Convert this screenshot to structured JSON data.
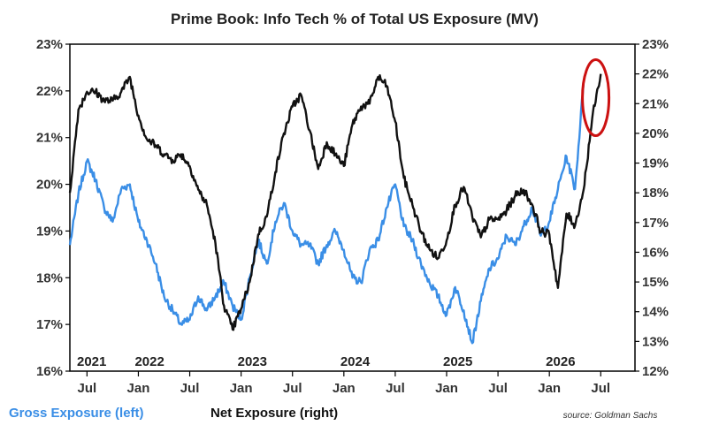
{
  "chart_data": {
    "type": "line",
    "title": "Prime Book: Info Tech % of Total US Exposure (MV)",
    "x_tick_labels": [
      "Jul",
      "Jan",
      "Jul",
      "Jan",
      "Jul",
      "Jan",
      "Jul",
      "Jan",
      "Jul",
      "Jan",
      "Jul"
    ],
    "year_labels": [
      "2021",
      "2022",
      "2023",
      "2024",
      "2025",
      "2026"
    ],
    "left_axis": {
      "ticks": [
        "16%",
        "17%",
        "18%",
        "19%",
        "20%",
        "21%",
        "22%",
        "23%"
      ],
      "ylim": [
        16,
        23
      ]
    },
    "right_axis": {
      "ticks": [
        "12%",
        "13%",
        "14%",
        "15%",
        "16%",
        "17%",
        "18%",
        "19%",
        "20%",
        "21%",
        "22%",
        "23%"
      ],
      "ylim": [
        12,
        23
      ]
    },
    "grid": false,
    "series": [
      {
        "name": "Gross Exposure (left)",
        "axis": "left",
        "color": "#3a8ee6",
        "points": [
          [
            "2021-05",
            18.7
          ],
          [
            "2021-06",
            19.8
          ],
          [
            "2021-07",
            20.5
          ],
          [
            "2021-08",
            20.1
          ],
          [
            "2021-09",
            19.5
          ],
          [
            "2021-10",
            19.2
          ],
          [
            "2021-11",
            19.9
          ],
          [
            "2021-12",
            20.0
          ],
          [
            "2022-01",
            19.2
          ],
          [
            "2022-02",
            18.8
          ],
          [
            "2022-03",
            18.3
          ],
          [
            "2022-04",
            17.6
          ],
          [
            "2022-05",
            17.3
          ],
          [
            "2022-06",
            17.0
          ],
          [
            "2022-07",
            17.1
          ],
          [
            "2022-08",
            17.6
          ],
          [
            "2022-09",
            17.3
          ],
          [
            "2022-10",
            17.6
          ],
          [
            "2022-11",
            17.9
          ],
          [
            "2022-12",
            17.4
          ],
          [
            "2023-01",
            17.1
          ],
          [
            "2023-02",
            18.0
          ],
          [
            "2023-03",
            18.8
          ],
          [
            "2023-04",
            18.3
          ],
          [
            "2023-05",
            19.2
          ],
          [
            "2023-06",
            19.6
          ],
          [
            "2023-07",
            19.0
          ],
          [
            "2023-08",
            18.7
          ],
          [
            "2023-09",
            18.7
          ],
          [
            "2023-10",
            18.3
          ],
          [
            "2023-11",
            18.7
          ],
          [
            "2023-12",
            19.0
          ],
          [
            "2024-01",
            18.6
          ],
          [
            "2024-02",
            18.0
          ],
          [
            "2024-03",
            17.9
          ],
          [
            "2024-04",
            18.6
          ],
          [
            "2024-05",
            18.8
          ],
          [
            "2024-06",
            19.5
          ],
          [
            "2024-07",
            20.0
          ],
          [
            "2024-08",
            19.1
          ],
          [
            "2024-09",
            18.8
          ],
          [
            "2024-10",
            18.3
          ],
          [
            "2024-11",
            17.9
          ],
          [
            "2024-12",
            17.6
          ],
          [
            "2025-01",
            17.2
          ],
          [
            "2025-02",
            17.8
          ],
          [
            "2025-03",
            17.3
          ],
          [
            "2025-04",
            16.6
          ],
          [
            "2025-05",
            17.5
          ],
          [
            "2025-06",
            18.2
          ],
          [
            "2025-07",
            18.4
          ],
          [
            "2025-08",
            18.9
          ],
          [
            "2025-09",
            18.7
          ],
          [
            "2025-10",
            19.1
          ],
          [
            "2025-11",
            19.5
          ],
          [
            "2025-12",
            18.9
          ],
          [
            "2026-01",
            19.2
          ],
          [
            "2026-02",
            19.9
          ],
          [
            "2026-03",
            20.6
          ],
          [
            "2026-04",
            19.9
          ],
          [
            "2026-05",
            22.2
          ]
        ]
      },
      {
        "name": "Net Exposure (right)",
        "axis": "right",
        "color": "#111111",
        "points": [
          [
            "2021-05",
            18.0
          ],
          [
            "2021-06",
            20.8
          ],
          [
            "2021-07",
            21.4
          ],
          [
            "2021-08",
            21.4
          ],
          [
            "2021-09",
            21.1
          ],
          [
            "2021-10",
            21.1
          ],
          [
            "2021-11",
            21.4
          ],
          [
            "2021-12",
            21.9
          ],
          [
            "2022-01",
            20.6
          ],
          [
            "2022-02",
            19.8
          ],
          [
            "2022-03",
            19.6
          ],
          [
            "2022-04",
            19.3
          ],
          [
            "2022-05",
            19.1
          ],
          [
            "2022-06",
            19.3
          ],
          [
            "2022-07",
            18.9
          ],
          [
            "2022-08",
            18.1
          ],
          [
            "2022-09",
            17.6
          ],
          [
            "2022-10",
            16.3
          ],
          [
            "2022-11",
            14.2
          ],
          [
            "2022-12",
            13.4
          ],
          [
            "2023-01",
            14.1
          ],
          [
            "2023-02",
            15.0
          ],
          [
            "2023-03",
            16.6
          ],
          [
            "2023-04",
            17.2
          ],
          [
            "2023-05",
            18.7
          ],
          [
            "2023-06",
            20.0
          ],
          [
            "2023-07",
            20.9
          ],
          [
            "2023-08",
            21.3
          ],
          [
            "2023-09",
            20.1
          ],
          [
            "2023-10",
            18.8
          ],
          [
            "2023-11",
            19.7
          ],
          [
            "2023-12",
            19.3
          ],
          [
            "2024-01",
            18.9
          ],
          [
            "2024-02",
            20.3
          ],
          [
            "2024-03",
            20.9
          ],
          [
            "2024-04",
            21.0
          ],
          [
            "2024-05",
            21.9
          ],
          [
            "2024-06",
            21.6
          ],
          [
            "2024-07",
            20.4
          ],
          [
            "2024-08",
            18.5
          ],
          [
            "2024-09",
            17.6
          ],
          [
            "2024-10",
            16.7
          ],
          [
            "2024-11",
            16.1
          ],
          [
            "2024-12",
            15.8
          ],
          [
            "2025-01",
            16.4
          ],
          [
            "2025-02",
            17.6
          ],
          [
            "2025-03",
            18.2
          ],
          [
            "2025-04",
            17.2
          ],
          [
            "2025-05",
            16.5
          ],
          [
            "2025-06",
            17.1
          ],
          [
            "2025-07",
            17.1
          ],
          [
            "2025-08",
            17.4
          ],
          [
            "2025-09",
            17.9
          ],
          [
            "2025-10",
            18.1
          ],
          [
            "2025-11",
            17.6
          ],
          [
            "2025-12",
            16.7
          ],
          [
            "2026-01",
            16.6
          ],
          [
            "2026-02",
            14.8
          ],
          [
            "2026-03",
            17.3
          ],
          [
            "2026-04",
            16.9
          ],
          [
            "2026-05",
            18.1
          ],
          [
            "2026-06",
            20.5
          ],
          [
            "2026-07",
            22.0
          ]
        ]
      }
    ],
    "annotation": {
      "type": "circle",
      "color": "#cc1111",
      "at": "2026-06",
      "axis": "right",
      "value": 21.2
    }
  },
  "legend": {
    "gross": "Gross Exposure (left)",
    "net": "Net Exposure (right)"
  },
  "source": "source: Goldman Sachs"
}
